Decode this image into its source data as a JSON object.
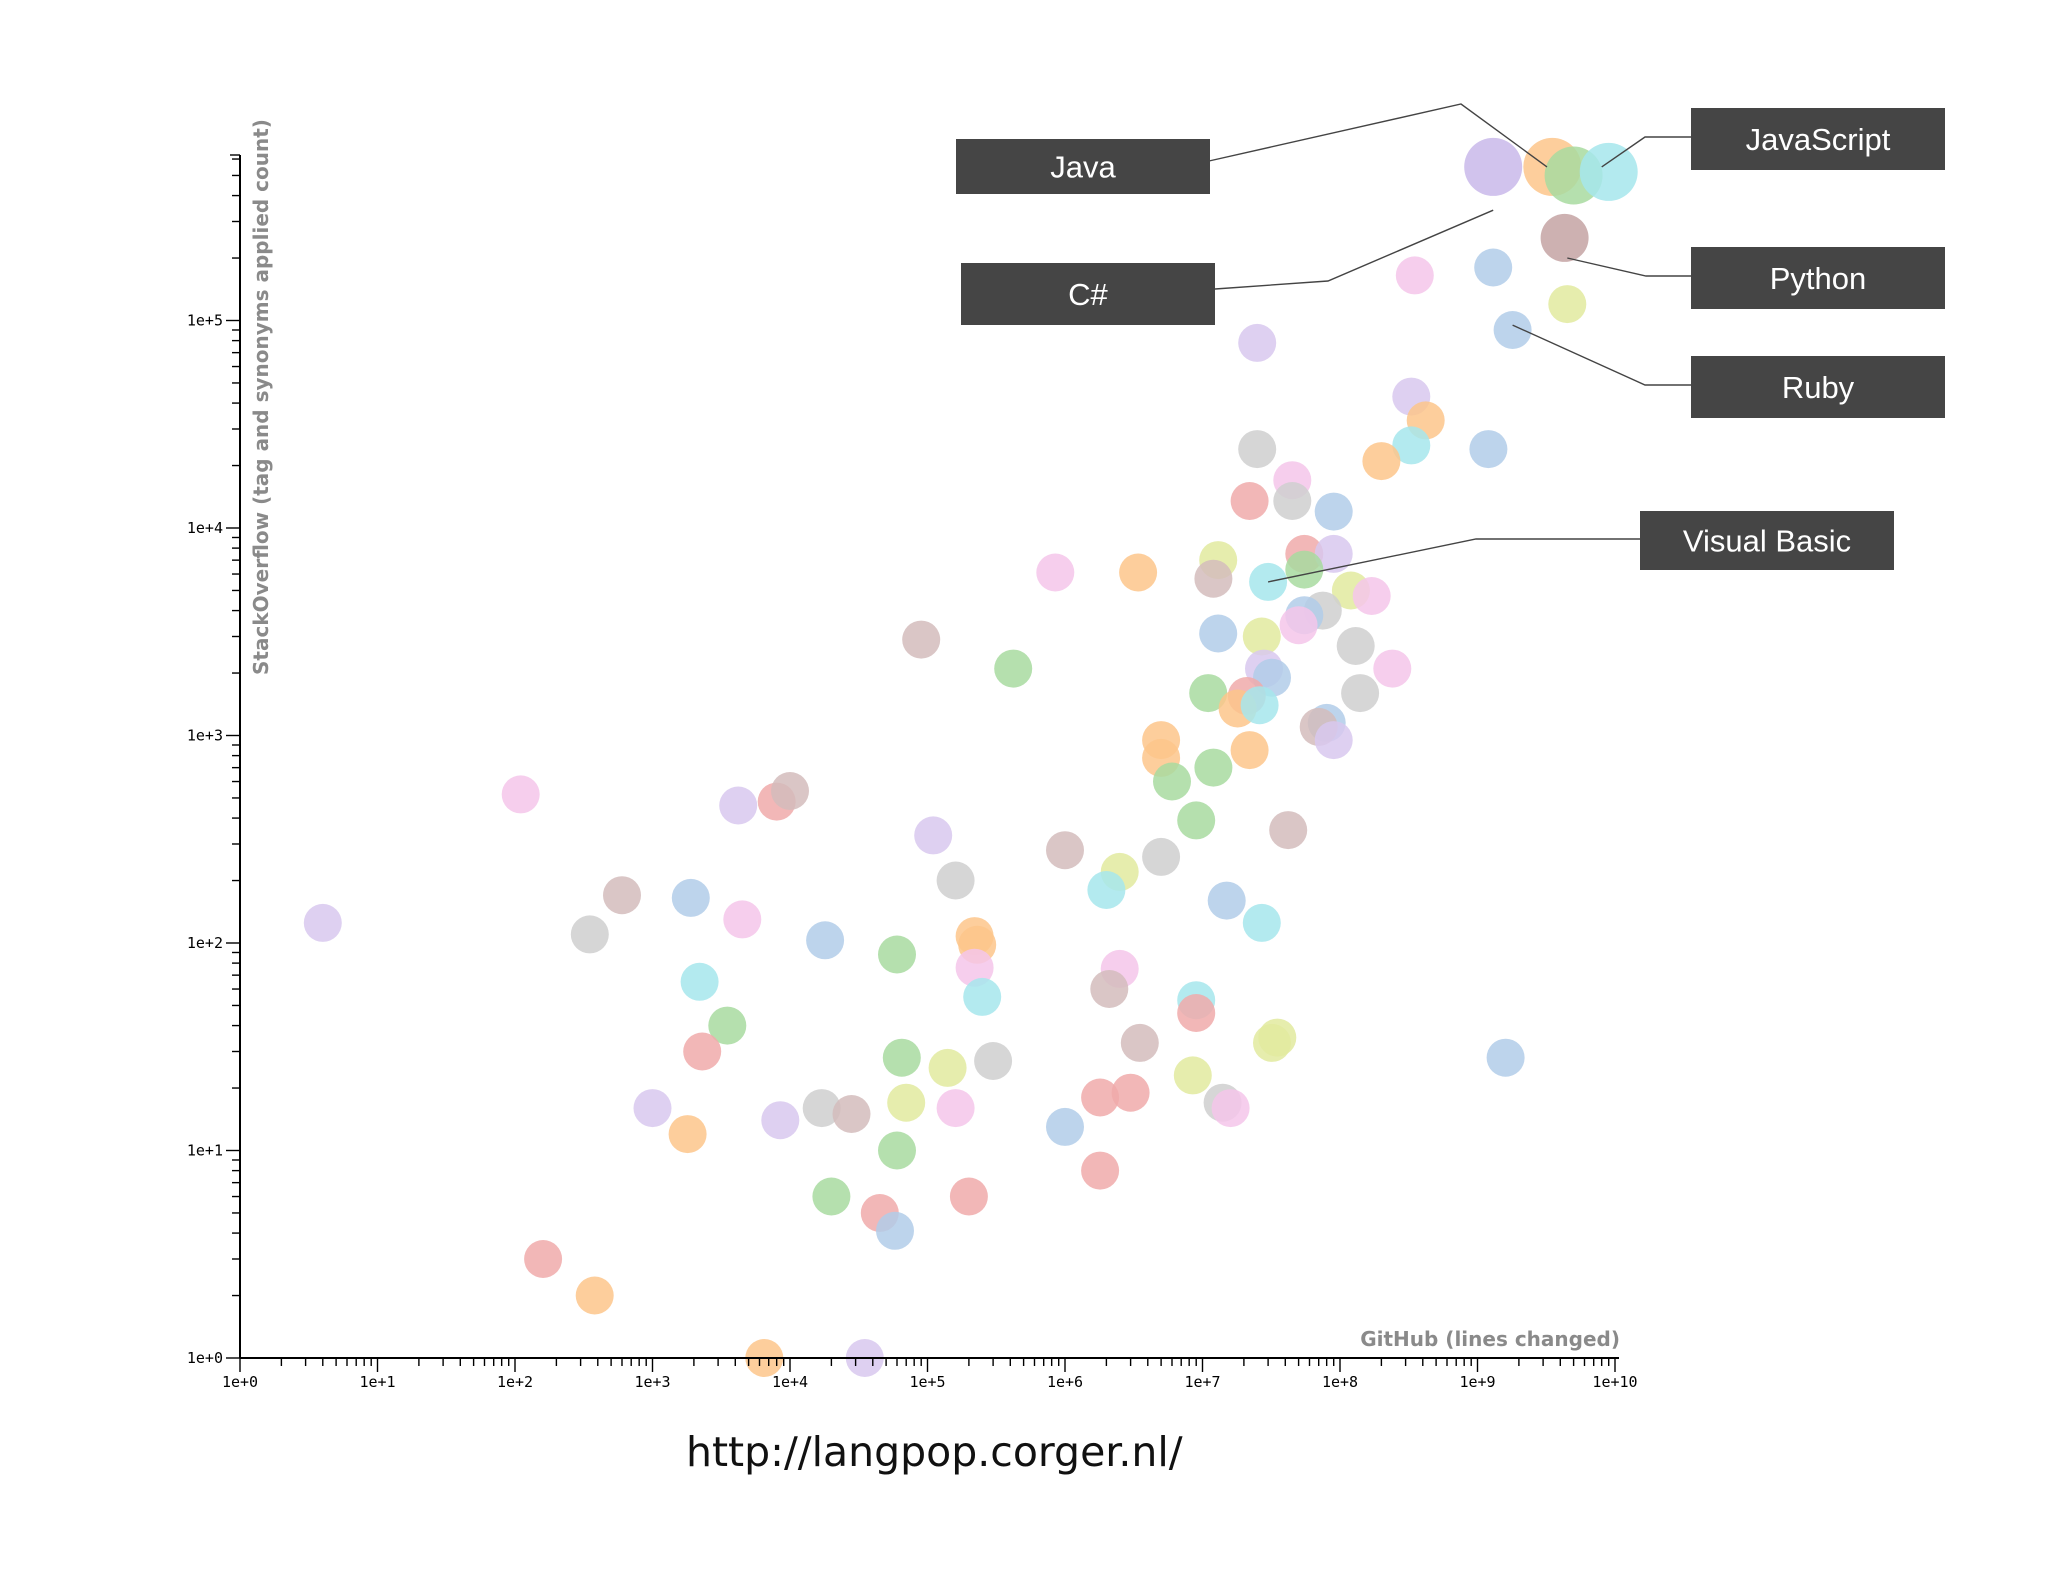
{
  "chart_data": {
    "type": "scatter",
    "title": "",
    "xlabel": "GitHub (lines changed)",
    "ylabel": "StackOverflow (tag and synonyms applied count)",
    "xscale": "log",
    "yscale": "log",
    "xlim": [
      1,
      10000000000
    ],
    "ylim": [
      1,
      600000
    ],
    "x_ticks": [
      "1e+0",
      "1e+1",
      "1e+2",
      "1e+3",
      "1e+4",
      "1e+5",
      "1e+6",
      "1e+7",
      "1e+8",
      "1e+9",
      "1e+10"
    ],
    "y_ticks": [
      "1e+0",
      "1e+1",
      "1e+2",
      "1e+3",
      "1e+4",
      "1e+5"
    ],
    "grid": false,
    "legend": "none",
    "callouts": [
      {
        "label": "Java",
        "points_to": [
          3200000000,
          550000
        ]
      },
      {
        "label": "JavaScript",
        "points_to": [
          8000000000,
          550000
        ]
      },
      {
        "label": "C#",
        "points_to": [
          1300000000,
          340000
        ]
      },
      {
        "label": "Python",
        "points_to": [
          4500000000,
          200000
        ]
      },
      {
        "label": "Ruby",
        "points_to": [
          1800000000,
          95000
        ]
      },
      {
        "label": "Visual Basic",
        "points_to": [
          30000000,
          5500
        ]
      }
    ],
    "points": [
      {
        "x": 1300000000,
        "y": 550000,
        "color": "#c9b8ea",
        "size": "xl"
      },
      {
        "x": 3500000000,
        "y": 550000,
        "color": "#fdc58b",
        "size": "xl"
      },
      {
        "x": 5000000000,
        "y": 500000,
        "color": "#a8dba0",
        "size": "xl"
      },
      {
        "x": 9000000000,
        "y": 520000,
        "color": "#a6e6ec",
        "size": "xl"
      },
      {
        "x": 4300000000,
        "y": 250000,
        "color": "#c4a3a3",
        "size": "l"
      },
      {
        "x": 1300000000,
        "y": 180000,
        "color": "#b2cde9",
        "size": "m"
      },
      {
        "x": 4500000000,
        "y": 120000,
        "color": "#e2ea9f",
        "size": "m"
      },
      {
        "x": 1800000000,
        "y": 90000,
        "color": "#b2cde9",
        "size": "m"
      },
      {
        "x": 350000000,
        "y": 165000,
        "color": "#f4c6ea",
        "size": "m"
      },
      {
        "x": 25000000,
        "y": 78000,
        "color": "#d8c8ee",
        "size": "m"
      },
      {
        "x": 330000000,
        "y": 43000,
        "color": "#d8c8ee",
        "size": "m"
      },
      {
        "x": 420000000,
        "y": 33000,
        "color": "#fdc58b",
        "size": "m"
      },
      {
        "x": 330000000,
        "y": 25000,
        "color": "#a6e6ec",
        "size": "m"
      },
      {
        "x": 200000000,
        "y": 21000,
        "color": "#fdc58b",
        "size": "m"
      },
      {
        "x": 1200000000,
        "y": 24000,
        "color": "#b2cde9",
        "size": "m"
      },
      {
        "x": 25000000,
        "y": 24000,
        "color": "#cfcfcf",
        "size": "m"
      },
      {
        "x": 45000000,
        "y": 17000,
        "color": "#f4c6ea",
        "size": "m"
      },
      {
        "x": 22000000,
        "y": 13500,
        "color": "#f0aaaa",
        "size": "m"
      },
      {
        "x": 45000000,
        "y": 13500,
        "color": "#cfcfcf",
        "size": "m"
      },
      {
        "x": 90000000,
        "y": 12000,
        "color": "#b2cde9",
        "size": "m"
      },
      {
        "x": 55000000,
        "y": 7500,
        "color": "#f0aaaa",
        "size": "m"
      },
      {
        "x": 90000000,
        "y": 7500,
        "color": "#d8c8ee",
        "size": "m"
      },
      {
        "x": 13000000,
        "y": 7000,
        "color": "#e2ea9f",
        "size": "m"
      },
      {
        "x": 12000000,
        "y": 5700,
        "color": "#d4bcbc",
        "size": "m"
      },
      {
        "x": 30000000,
        "y": 5500,
        "color": "#a6e6ec",
        "size": "m"
      },
      {
        "x": 55000000,
        "y": 6300,
        "color": "#a8dba0",
        "size": "m"
      },
      {
        "x": 120000000,
        "y": 5000,
        "color": "#e2ea9f",
        "size": "m"
      },
      {
        "x": 170000000,
        "y": 4700,
        "color": "#f4c6ea",
        "size": "m"
      },
      {
        "x": 75000000,
        "y": 4000,
        "color": "#cfcfcf",
        "size": "m"
      },
      {
        "x": 55000000,
        "y": 3800,
        "color": "#b2cde9",
        "size": "m"
      },
      {
        "x": 50000000,
        "y": 3400,
        "color": "#f4c6ea",
        "size": "m"
      },
      {
        "x": 850000,
        "y": 6100,
        "color": "#f4c6ea",
        "size": "m"
      },
      {
        "x": 3400000,
        "y": 6100,
        "color": "#fdc58b",
        "size": "m"
      },
      {
        "x": 13000000,
        "y": 3100,
        "color": "#b2cde9",
        "size": "m"
      },
      {
        "x": 27000000,
        "y": 3000,
        "color": "#e2ea9f",
        "size": "m"
      },
      {
        "x": 130000000,
        "y": 2700,
        "color": "#cfcfcf",
        "size": "m"
      },
      {
        "x": 240000000,
        "y": 2100,
        "color": "#f4c6ea",
        "size": "m"
      },
      {
        "x": 28000000,
        "y": 2100,
        "color": "#d8c8ee",
        "size": "m"
      },
      {
        "x": 32000000,
        "y": 1900,
        "color": "#b2cde9",
        "size": "m"
      },
      {
        "x": 11000000,
        "y": 1600,
        "color": "#a8dba0",
        "size": "m"
      },
      {
        "x": 21000000,
        "y": 1550,
        "color": "#f0aaaa",
        "size": "m"
      },
      {
        "x": 18000000,
        "y": 1350,
        "color": "#fdc58b",
        "size": "m"
      },
      {
        "x": 26000000,
        "y": 1400,
        "color": "#a6e6ec",
        "size": "m"
      },
      {
        "x": 140000000,
        "y": 1600,
        "color": "#cfcfcf",
        "size": "m"
      },
      {
        "x": 80000000,
        "y": 1150,
        "color": "#b2cde9",
        "size": "m"
      },
      {
        "x": 70000000,
        "y": 1100,
        "color": "#d4bcbc",
        "size": "m"
      },
      {
        "x": 90000000,
        "y": 950,
        "color": "#d8c8ee",
        "size": "m"
      },
      {
        "x": 90000,
        "y": 2900,
        "color": "#d4bcbc",
        "size": "m"
      },
      {
        "x": 420000,
        "y": 2100,
        "color": "#a8dba0",
        "size": "m"
      },
      {
        "x": 5000000,
        "y": 950,
        "color": "#fdc58b",
        "size": "m"
      },
      {
        "x": 22000000,
        "y": 850,
        "color": "#fdc58b",
        "size": "m"
      },
      {
        "x": 5000000,
        "y": 780,
        "color": "#fdc58b",
        "size": "m"
      },
      {
        "x": 12000000,
        "y": 700,
        "color": "#a8dba0",
        "size": "m"
      },
      {
        "x": 6000000,
        "y": 600,
        "color": "#a8dba0",
        "size": "m"
      },
      {
        "x": 9000000,
        "y": 390,
        "color": "#a8dba0",
        "size": "m"
      },
      {
        "x": 42000000,
        "y": 350,
        "color": "#d4bcbc",
        "size": "m"
      },
      {
        "x": 110,
        "y": 520,
        "color": "#f4c6ea",
        "size": "m"
      },
      {
        "x": 4200,
        "y": 460,
        "color": "#d8c8ee",
        "size": "m"
      },
      {
        "x": 8000,
        "y": 480,
        "color": "#f0aaaa",
        "size": "m"
      },
      {
        "x": 10000,
        "y": 540,
        "color": "#d4bcbc",
        "size": "m"
      },
      {
        "x": 110000,
        "y": 330,
        "color": "#d8c8ee",
        "size": "m"
      },
      {
        "x": 1000000,
        "y": 280,
        "color": "#d4bcbc",
        "size": "m"
      },
      {
        "x": 5000000,
        "y": 260,
        "color": "#cfcfcf",
        "size": "m"
      },
      {
        "x": 160000,
        "y": 200,
        "color": "#cfcfcf",
        "size": "m"
      },
      {
        "x": 2500000,
        "y": 220,
        "color": "#e2ea9f",
        "size": "m"
      },
      {
        "x": 2000000,
        "y": 180,
        "color": "#a6e6ec",
        "size": "m"
      },
      {
        "x": 15000000,
        "y": 160,
        "color": "#b2cde9",
        "size": "m"
      },
      {
        "x": 27000000,
        "y": 125,
        "color": "#a6e6ec",
        "size": "m"
      },
      {
        "x": 4,
        "y": 125,
        "color": "#d8c8ee",
        "size": "m"
      },
      {
        "x": 600,
        "y": 170,
        "color": "#d4bcbc",
        "size": "m"
      },
      {
        "x": 1900,
        "y": 165,
        "color": "#b2cde9",
        "size": "m"
      },
      {
        "x": 350,
        "y": 110,
        "color": "#cfcfcf",
        "size": "m"
      },
      {
        "x": 4500,
        "y": 130,
        "color": "#f4c6ea",
        "size": "m"
      },
      {
        "x": 18000,
        "y": 103,
        "color": "#b2cde9",
        "size": "m"
      },
      {
        "x": 60000,
        "y": 88,
        "color": "#a8dba0",
        "size": "m"
      },
      {
        "x": 220000,
        "y": 108,
        "color": "#fdc58b",
        "size": "m"
      },
      {
        "x": 230000,
        "y": 98,
        "color": "#fdc58b",
        "size": "m"
      },
      {
        "x": 220000,
        "y": 76,
        "color": "#f4c6ea",
        "size": "m"
      },
      {
        "x": 2500000,
        "y": 75,
        "color": "#f4c6ea",
        "size": "m"
      },
      {
        "x": 2200,
        "y": 65,
        "color": "#a6e6ec",
        "size": "m"
      },
      {
        "x": 250000,
        "y": 55,
        "color": "#a6e6ec",
        "size": "m"
      },
      {
        "x": 2100000,
        "y": 60,
        "color": "#d4bcbc",
        "size": "m"
      },
      {
        "x": 9000000,
        "y": 53,
        "color": "#a6e6ec",
        "size": "m"
      },
      {
        "x": 9000000,
        "y": 46,
        "color": "#f0aaaa",
        "size": "m"
      },
      {
        "x": 3500,
        "y": 40,
        "color": "#a8dba0",
        "size": "m"
      },
      {
        "x": 2300,
        "y": 30,
        "color": "#f0aaaa",
        "size": "m"
      },
      {
        "x": 3500000,
        "y": 33,
        "color": "#d4bcbc",
        "size": "m"
      },
      {
        "x": 32000000,
        "y": 33,
        "color": "#e2ea9f",
        "size": "m"
      },
      {
        "x": 35000000,
        "y": 35,
        "color": "#e2ea9f",
        "size": "m"
      },
      {
        "x": 65000,
        "y": 28,
        "color": "#a8dba0",
        "size": "m"
      },
      {
        "x": 140000,
        "y": 25,
        "color": "#e2ea9f",
        "size": "m"
      },
      {
        "x": 300000,
        "y": 27,
        "color": "#cfcfcf",
        "size": "m"
      },
      {
        "x": 1600000000,
        "y": 28,
        "color": "#b2cde9",
        "size": "m"
      },
      {
        "x": 1000,
        "y": 16,
        "color": "#d8c8ee",
        "size": "m"
      },
      {
        "x": 8500,
        "y": 14,
        "color": "#d8c8ee",
        "size": "m"
      },
      {
        "x": 17000,
        "y": 16,
        "color": "#cfcfcf",
        "size": "m"
      },
      {
        "x": 28000,
        "y": 15,
        "color": "#d4bcbc",
        "size": "m"
      },
      {
        "x": 70000,
        "y": 17,
        "color": "#e2ea9f",
        "size": "m"
      },
      {
        "x": 160000,
        "y": 16,
        "color": "#f4c6ea",
        "size": "m"
      },
      {
        "x": 8500000,
        "y": 23,
        "color": "#e2ea9f",
        "size": "m"
      },
      {
        "x": 14000000,
        "y": 17,
        "color": "#cfcfcf",
        "size": "m"
      },
      {
        "x": 16000000,
        "y": 16,
        "color": "#f4c6ea",
        "size": "m"
      },
      {
        "x": 1800000,
        "y": 18,
        "color": "#f0aaaa",
        "size": "m"
      },
      {
        "x": 3000000,
        "y": 19,
        "color": "#f0aaaa",
        "size": "m"
      },
      {
        "x": 1800,
        "y": 12,
        "color": "#fdc58b",
        "size": "m"
      },
      {
        "x": 1000000,
        "y": 13,
        "color": "#b2cde9",
        "size": "m"
      },
      {
        "x": 60000,
        "y": 10,
        "color": "#a8dba0",
        "size": "m"
      },
      {
        "x": 1800000,
        "y": 8,
        "color": "#f0aaaa",
        "size": "m"
      },
      {
        "x": 20000,
        "y": 6,
        "color": "#a8dba0",
        "size": "m"
      },
      {
        "x": 200000,
        "y": 6,
        "color": "#f0aaaa",
        "size": "m"
      },
      {
        "x": 45000,
        "y": 5,
        "color": "#f0aaaa",
        "size": "m"
      },
      {
        "x": 58000,
        "y": 4.1,
        "color": "#b2cde9",
        "size": "m"
      },
      {
        "x": 160,
        "y": 3,
        "color": "#f0aaaa",
        "size": "m"
      },
      {
        "x": 380,
        "y": 2,
        "color": "#fdc58b",
        "size": "m"
      },
      {
        "x": 6500,
        "y": 1,
        "color": "#fdc58b",
        "size": "m"
      },
      {
        "x": 35000,
        "y": 1,
        "color": "#d8c8ee",
        "size": "m"
      }
    ]
  },
  "footer": {
    "source_url": "http://langpop.corger.nl/"
  }
}
